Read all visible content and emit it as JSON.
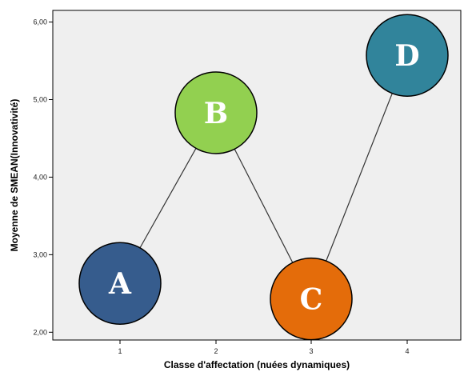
{
  "chart_data": {
    "type": "line",
    "title": "",
    "xlabel": "Classe d'affectation (nuées dynamiques)",
    "ylabel": "Moyenne de SMEAN(Innovativité)",
    "x": [
      1,
      2,
      3,
      4
    ],
    "x_tick_labels": [
      "1",
      "2",
      "3",
      "4"
    ],
    "ylim": [
      1.9,
      6.15
    ],
    "y_ticks": [
      2,
      3,
      4,
      5,
      6
    ],
    "y_tick_labels": [
      "2,00",
      "3,00",
      "4,00",
      "5,00",
      "6,00"
    ],
    "series": [
      {
        "values": [
          2.63,
          4.83,
          2.43,
          5.57
        ],
        "point_labels": [
          "A",
          "B",
          "C",
          "D"
        ],
        "point_colors": [
          "#365c8d",
          "#92d050",
          "#e46c0a",
          "#31849b"
        ]
      }
    ],
    "grid": false,
    "plot_background": "#efefef",
    "line_color": "#333333"
  }
}
